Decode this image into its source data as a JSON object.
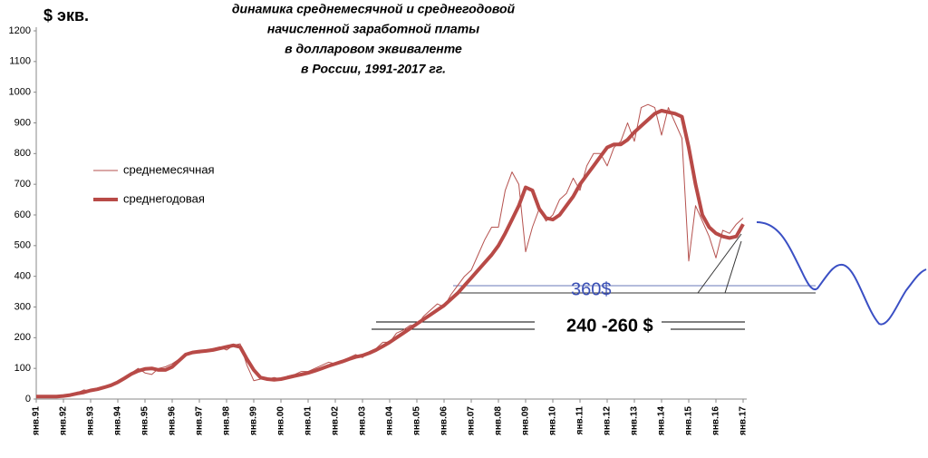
{
  "chart_data": {
    "type": "line",
    "title": [
      "динамика среднемесячной  и среднегодовой",
      "начисленной заработной платы",
      "в долларовом эквиваленте",
      "в России, 1991-2017 гг."
    ],
    "y_label": "$ экв.",
    "categories": [
      "янв.91",
      null,
      null,
      null,
      "янв.92",
      null,
      null,
      null,
      "янв.93",
      null,
      null,
      null,
      "янв.94",
      null,
      null,
      null,
      "янв.95",
      null,
      null,
      null,
      "янв.96",
      null,
      null,
      null,
      "янв.97",
      null,
      null,
      null,
      "янв.98",
      null,
      null,
      null,
      "янв.99",
      null,
      null,
      null,
      "янв.00",
      null,
      null,
      null,
      "янв.01",
      null,
      null,
      null,
      "янв.02",
      null,
      null,
      null,
      "янв.03",
      null,
      null,
      null,
      "янв.04",
      null,
      null,
      null,
      "янв.05",
      null,
      null,
      null,
      "янв.06",
      null,
      null,
      null,
      "янв.07",
      null,
      null,
      null,
      "янв.08",
      null,
      null,
      null,
      "янв.09",
      null,
      null,
      null,
      "янв.10",
      null,
      null,
      null,
      "янв.11",
      null,
      null,
      null,
      "янв.12",
      null,
      null,
      null,
      "янв.13",
      null,
      null,
      null,
      "янв.14",
      null,
      null,
      null,
      "янв.15",
      null,
      null,
      null,
      "янв.16",
      null,
      null,
      null,
      "янв.17"
    ],
    "series": [
      {
        "name": "среднемесячная",
        "color": "#b5524f",
        "width": 1,
        "values": [
          10,
          10,
          8,
          7,
          8,
          12,
          20,
          30,
          25,
          30,
          35,
          45,
          55,
          70,
          85,
          100,
          85,
          80,
          100,
          105,
          115,
          130,
          145,
          155,
          150,
          160,
          165,
          170,
          160,
          175,
          180,
          110,
          60,
          65,
          65,
          70,
          65,
          75,
          80,
          90,
          90,
          100,
          110,
          120,
          115,
          125,
          135,
          145,
          135,
          155,
          165,
          185,
          185,
          215,
          225,
          240,
          240,
          270,
          290,
          310,
          300,
          340,
          370,
          400,
          420,
          470,
          520,
          560,
          560,
          680,
          740,
          700,
          480,
          560,
          620,
          580,
          600,
          650,
          670,
          720,
          680,
          760,
          800,
          800,
          760,
          820,
          840,
          900,
          840,
          950,
          960,
          950,
          860,
          950,
          900,
          850,
          450,
          630,
          580,
          530,
          460,
          550,
          540,
          570,
          590
        ]
      },
      {
        "name": "среднегодовая",
        "color": "#b84a47",
        "width": 4,
        "values": [
          8,
          8,
          8,
          8,
          10,
          13,
          18,
          22,
          28,
          32,
          38,
          45,
          55,
          68,
          82,
          92,
          98,
          100,
          95,
          95,
          105,
          125,
          145,
          152,
          155,
          157,
          160,
          165,
          170,
          175,
          170,
          130,
          95,
          70,
          65,
          63,
          65,
          70,
          75,
          80,
          85,
          92,
          100,
          108,
          115,
          122,
          130,
          137,
          142,
          150,
          160,
          172,
          185,
          200,
          215,
          230,
          245,
          260,
          275,
          290,
          305,
          325,
          345,
          370,
          395,
          420,
          445,
          470,
          500,
          540,
          585,
          630,
          690,
          680,
          620,
          590,
          585,
          600,
          630,
          660,
          700,
          730,
          760,
          790,
          820,
          830,
          830,
          845,
          870,
          890,
          910,
          930,
          940,
          935,
          930,
          920,
          820,
          700,
          600,
          560,
          540,
          530,
          525,
          530,
          570
        ]
      }
    ],
    "ylim": [
      0,
      1200
    ],
    "yticks": [
      0,
      100,
      200,
      300,
      400,
      500,
      600,
      700,
      800,
      900,
      1000,
      1100,
      1200
    ],
    "grid": false,
    "annotations": [
      "360$",
      "240 -260 $"
    ]
  }
}
